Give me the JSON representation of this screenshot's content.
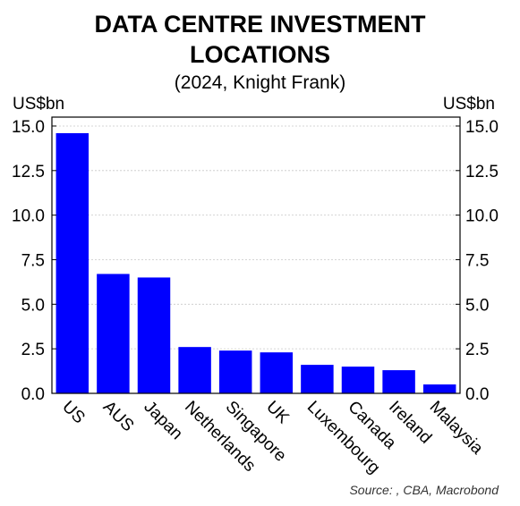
{
  "title_lines": [
    "DATA CENTRE INVESTMENT",
    "LOCATIONS"
  ],
  "subtitle": "(2024, Knight Frank)",
  "unit_left": "US$bn",
  "unit_right": "US$bn",
  "source": "Source: , CBA, Macrobond",
  "colors": {
    "bar": "#0000ff",
    "grid": "#c8c8c8",
    "axis": "#000000"
  },
  "chart_data": {
    "type": "bar",
    "title": "DATA CENTRE INVESTMENT LOCATIONS",
    "subtitle": "(2024, Knight Frank)",
    "ylabel": "US$bn",
    "ylim": [
      0,
      15.5
    ],
    "yticks": [
      0,
      2.5,
      5,
      7.5,
      10,
      12.5,
      15
    ],
    "ytick_labels": [
      "0.0",
      "2.5",
      "5.0",
      "7.5",
      "10.0",
      "12.5",
      "15.0"
    ],
    "grid": true,
    "categories": [
      "US",
      "AUS",
      "Japan",
      "Netherlands",
      "Singapore",
      "UK",
      "Luxembourg",
      "Canada",
      "Ireland",
      "Malaysia"
    ],
    "values": [
      14.6,
      6.7,
      6.5,
      2.6,
      2.4,
      2.3,
      1.6,
      1.5,
      1.3,
      0.5
    ]
  }
}
